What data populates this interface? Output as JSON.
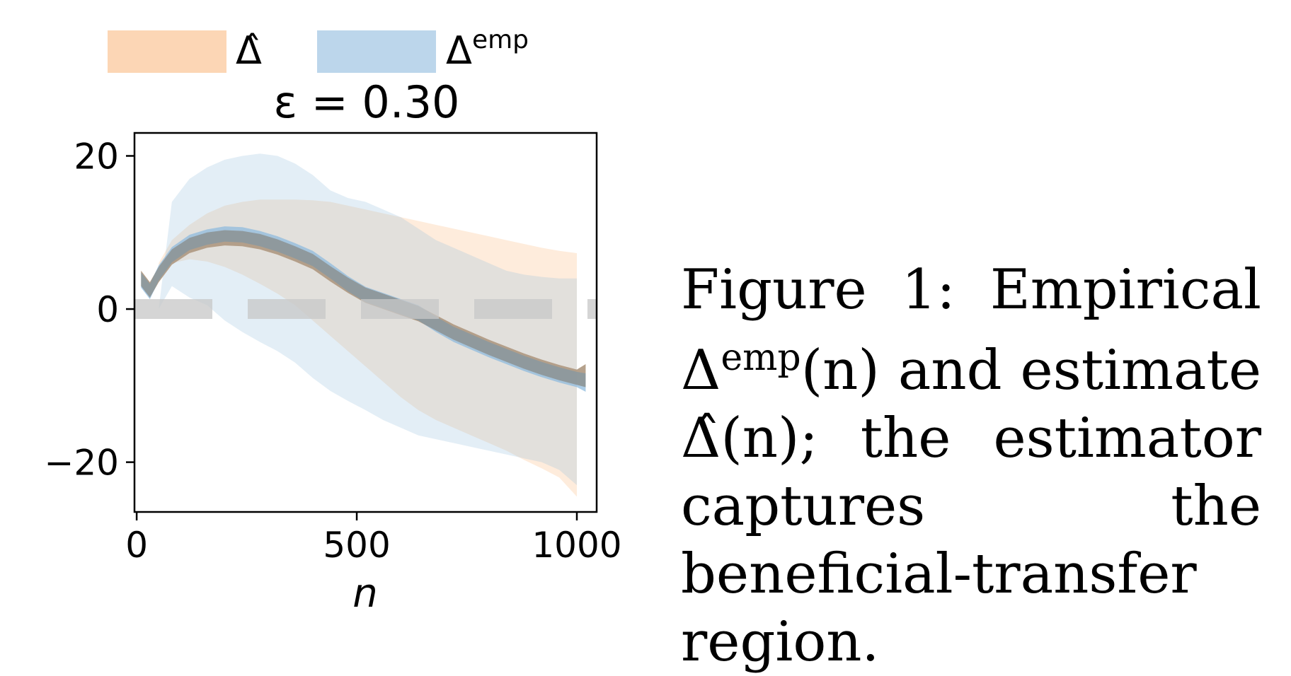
{
  "chart_data": {
    "type": "area",
    "title": "ε = 0.30",
    "xlabel": "n",
    "ylabel": "",
    "xlim": [
      -5,
      1045
    ],
    "ylim": [
      -26.5,
      23
    ],
    "xticks": [
      0,
      500,
      1000
    ],
    "xtick_labels": [
      "0",
      "500",
      "1000"
    ],
    "yticks": [
      -20,
      0,
      20
    ],
    "ytick_labels": [
      "−20",
      "0",
      "20"
    ],
    "grid": false,
    "legend_position": "top-left-outside",
    "reference_line": {
      "y": 0,
      "style": "dashed",
      "color": "#c8c8c8"
    },
    "x": [
      10,
      30,
      50,
      80,
      120,
      160,
      200,
      240,
      280,
      320,
      360,
      400,
      440,
      480,
      520,
      560,
      600,
      640,
      680,
      720,
      760,
      800,
      840,
      880,
      920,
      960,
      1000,
      1020
    ],
    "series": [
      {
        "name": "Δ̂",
        "color": "#fbc89c",
        "mean": [
          4.0,
          2.5,
          4.5,
          6.8,
          8.3,
          9.0,
          9.3,
          9.2,
          8.8,
          8.1,
          7.2,
          6.2,
          4.6,
          3.1,
          1.8,
          1.0,
          0.2,
          -0.6,
          -1.8,
          -3.0,
          -4.0,
          -5.0,
          -5.9,
          -6.8,
          -7.6,
          -8.3,
          -8.9,
          -9.2
        ],
        "lower": [
          3.0,
          1.5,
          3.5,
          5.8,
          7.3,
          8.0,
          8.3,
          8.2,
          7.8,
          7.1,
          6.2,
          5.2,
          3.6,
          2.1,
          0.8,
          0.0,
          -0.8,
          -1.6,
          -2.8,
          -4.0,
          -5.0,
          -6.0,
          -6.9,
          -7.8,
          -8.6,
          -9.3,
          -9.9,
          -10.2
        ],
        "upper": [
          5.0,
          3.5,
          5.5,
          7.8,
          9.3,
          10.0,
          10.3,
          10.2,
          9.8,
          9.1,
          8.2,
          7.2,
          5.6,
          4.1,
          2.8,
          2.0,
          1.2,
          0.4,
          -0.8,
          -2.0,
          -3.0,
          -4.0,
          -4.9,
          -5.8,
          -6.6,
          -7.3,
          -7.9,
          -7.2
        ],
        "outer_lower": [
          null,
          null,
          5.0,
          6.0,
          6.5,
          6.2,
          5.5,
          4.5,
          3.3,
          2.0,
          0.5,
          -1.5,
          -3.5,
          -5.5,
          -7.5,
          -9.5,
          -11.5,
          -13.2,
          -14.5,
          -15.5,
          -16.5,
          -17.5,
          -18.5,
          -19.7,
          -20.8,
          -22.0,
          -24.5,
          null
        ],
        "outer_upper": [
          null,
          null,
          6.0,
          9.0,
          11.0,
          12.5,
          13.5,
          14.0,
          14.3,
          14.3,
          14.3,
          14.2,
          14.0,
          13.5,
          13.0,
          12.5,
          12.0,
          11.5,
          11.0,
          10.5,
          10.0,
          9.5,
          9.0,
          8.5,
          8.0,
          7.6,
          7.3,
          null
        ]
      },
      {
        "name": "Δemp",
        "color": "#8fbbdd",
        "mean": [
          3.8,
          2.3,
          4.7,
          7.1,
          8.7,
          9.4,
          9.8,
          9.7,
          9.2,
          8.5,
          7.6,
          6.6,
          5.0,
          3.3,
          1.9,
          1.1,
          0.3,
          -0.5,
          -2.0,
          -3.3,
          -4.3,
          -5.3,
          -6.2,
          -7.1,
          -7.9,
          -8.6,
          -9.2,
          -9.6
        ],
        "lower": [
          2.8,
          1.3,
          3.7,
          6.1,
          7.7,
          8.4,
          8.8,
          8.7,
          8.2,
          7.5,
          6.6,
          5.6,
          4.0,
          2.3,
          0.9,
          0.1,
          -0.7,
          -1.5,
          -3.0,
          -4.3,
          -5.3,
          -6.3,
          -7.2,
          -8.1,
          -8.9,
          -9.6,
          -10.2,
          -10.8
        ],
        "upper": [
          4.8,
          3.3,
          5.7,
          8.1,
          9.7,
          10.4,
          10.8,
          10.7,
          10.2,
          9.5,
          8.6,
          7.6,
          6.0,
          4.3,
          2.9,
          2.1,
          1.3,
          0.5,
          -1.0,
          -2.3,
          -3.3,
          -4.3,
          -5.2,
          -6.1,
          -6.9,
          -7.6,
          -8.2,
          -8.4
        ],
        "outer_lower": [
          null,
          null,
          0.0,
          3.0,
          1.5,
          0.5,
          -1.5,
          -3.0,
          -4.3,
          -5.5,
          -7.0,
          -9.0,
          -10.7,
          -12.0,
          -13.2,
          -14.5,
          -15.5,
          -16.5,
          -17.0,
          -17.5,
          -18.0,
          -18.5,
          -19.0,
          -19.5,
          -20.0,
          -21.0,
          -23.0,
          null
        ],
        "outer_upper": [
          null,
          null,
          0.0,
          14.0,
          17.0,
          18.5,
          19.5,
          20.0,
          20.3,
          20.0,
          19.0,
          17.5,
          15.5,
          14.5,
          14.0,
          13.0,
          12.0,
          10.5,
          9.0,
          8.0,
          7.0,
          6.0,
          5.0,
          4.5,
          4.2,
          4.0,
          4.0,
          null
        ]
      }
    ]
  },
  "legend": {
    "items": [
      {
        "label": "Δ̂",
        "color": "#fbc89c"
      },
      {
        "label": "Δ",
        "sup": "emp",
        "color": "#8fbbdd"
      }
    ]
  },
  "caption": {
    "label": "Figure 1:",
    "text_1": "Empirical",
    "delta": "Δ",
    "sup": "emp",
    "text_2": "(n) and estimate",
    "hat_delta": "Δ̂",
    "text_3": "(n); the estimator captures the beneficial-transfer region."
  }
}
